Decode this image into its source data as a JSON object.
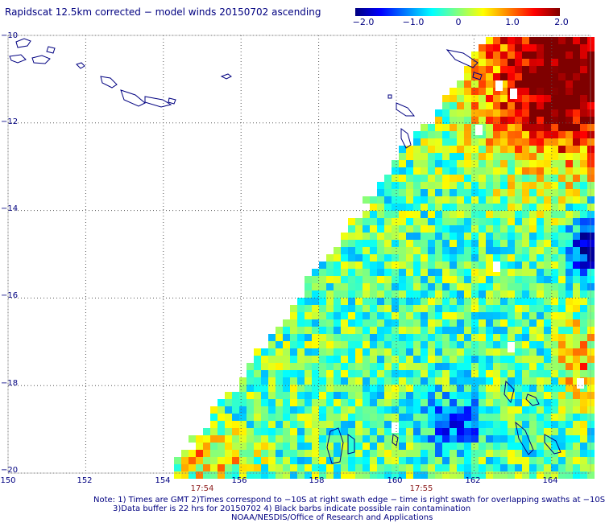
{
  "title": "Rapidscat 12.5km corrected − model winds 20150702 ascending",
  "colorbar": {
    "min": -2.0,
    "max": 2.0,
    "labels": [
      "−2.0",
      "−1.0",
      "0",
      "1.0",
      "2.0"
    ],
    "colors": [
      "#00007f",
      "#0000ff",
      "#0080ff",
      "#00ffff",
      "#80ff80",
      "#ffff00",
      "#ff8000",
      "#ff0000",
      "#7f0000"
    ]
  },
  "map": {
    "lat_labels": [
      "−10",
      "−12",
      "−14",
      "−16",
      "−18",
      "−20"
    ],
    "lon_labels": [
      "150",
      "152",
      "154",
      "156",
      "158",
      "160",
      "162",
      "164"
    ],
    "lat_range": [
      -20,
      -10
    ],
    "lon_range": [
      150,
      165
    ],
    "grid": "dotted",
    "coastline_color": "#000080"
  },
  "time_labels": [
    "17:54",
    "17:55"
  ],
  "notes": {
    "line1": "Note: 1) Times are GMT 2)Times correspond to −10S at right swath edge − time is right swath for overlapping swaths at −10S",
    "line2": "3)Data buffer is 22 hrs for 20150702 4) Black barbs indicate possible rain contamination",
    "line3": "NOAA/NESDIS/Office of Research and Applications"
  }
}
